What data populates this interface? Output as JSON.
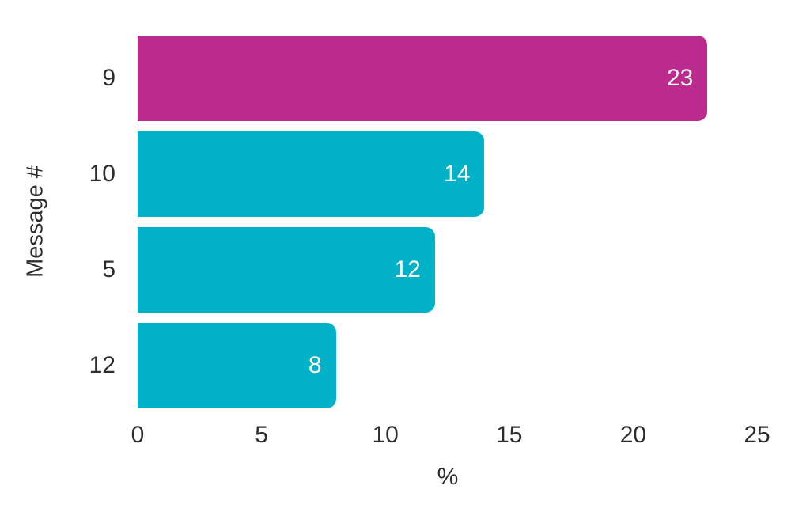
{
  "chart_data": {
    "type": "bar",
    "orientation": "horizontal",
    "title": "",
    "xlabel": "%",
    "ylabel": "Message #",
    "categories": [
      "9",
      "10",
      "5",
      "12"
    ],
    "values": [
      23,
      14,
      12,
      8
    ],
    "value_labels": [
      "23",
      "14",
      "12",
      "8"
    ],
    "bar_colors": [
      "#bb2b8d",
      "#00b1c8",
      "#00b1c8",
      "#00b1c8"
    ],
    "xlim": [
      0,
      25
    ],
    "xticks": [
      0,
      5,
      10,
      15,
      20,
      25
    ],
    "grid": false,
    "legend": "none",
    "value_label_color": "#ffffff",
    "text_color": "#2d2d2d",
    "background_color": "#ffffff"
  }
}
